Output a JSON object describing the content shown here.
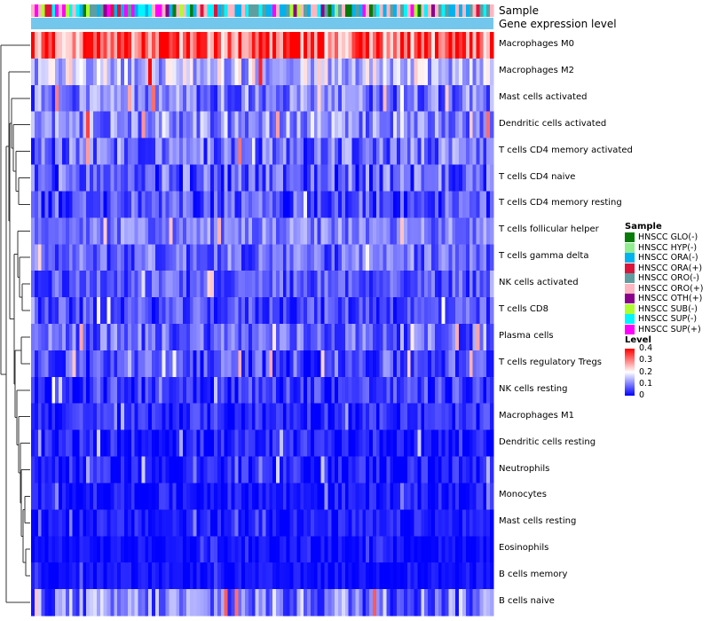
{
  "chart_data": {
    "type": "heatmap",
    "annotation_labels": {
      "sample": "Sample",
      "level": "Gene expression level"
    },
    "rows": [
      {
        "label": "Macrophages M0",
        "mean": 0.3,
        "spread": 0.12
      },
      {
        "label": "Macrophages M2",
        "mean": 0.13,
        "spread": 0.08
      },
      {
        "label": "Mast cells activated",
        "mean": 0.07,
        "spread": 0.07
      },
      {
        "label": "Dendritic cells activated",
        "mean": 0.09,
        "spread": 0.07
      },
      {
        "label": "T cells CD4 memory activated",
        "mean": 0.06,
        "spread": 0.07
      },
      {
        "label": "T cells CD4 naive",
        "mean": 0.05,
        "spread": 0.07
      },
      {
        "label": "T cells CD4 memory resting",
        "mean": 0.04,
        "spread": 0.06
      },
      {
        "label": "T cells follicular helper",
        "mean": 0.08,
        "spread": 0.05
      },
      {
        "label": "T cells gamma delta",
        "mean": 0.06,
        "spread": 0.06
      },
      {
        "label": "NK cells activated",
        "mean": 0.05,
        "spread": 0.05
      },
      {
        "label": "T cells CD8",
        "mean": 0.04,
        "spread": 0.05
      },
      {
        "label": "Plasma cells",
        "mean": 0.06,
        "spread": 0.06
      },
      {
        "label": "T cells regulatory  Tregs",
        "mean": 0.04,
        "spread": 0.06
      },
      {
        "label": "NK cells resting",
        "mean": 0.03,
        "spread": 0.05
      },
      {
        "label": "Macrophages M1",
        "mean": 0.02,
        "spread": 0.04
      },
      {
        "label": "Dendritic cells resting",
        "mean": 0.01,
        "spread": 0.04
      },
      {
        "label": "Neutrophils",
        "mean": 0.01,
        "spread": 0.04
      },
      {
        "label": "Monocytes",
        "mean": 0.01,
        "spread": 0.03
      },
      {
        "label": "Mast cells resting",
        "mean": 0.01,
        "spread": 0.03
      },
      {
        "label": "Eosinophils",
        "mean": 0.005,
        "spread": 0.02
      },
      {
        "label": "B cells memory",
        "mean": 0.005,
        "spread": 0.02
      },
      {
        "label": "B cells naive",
        "mean": 0.07,
        "spread": 0.08
      }
    ],
    "n_samples": 134,
    "value_range": [
      0,
      0.4
    ],
    "sample_legend": {
      "title": "Sample",
      "items": [
        {
          "label": "HNSCC GLO(-)",
          "color": "#087a08"
        },
        {
          "label": "HNSCC HYP(-)",
          "color": "#90ee90"
        },
        {
          "label": "HNSCC ORA(-)",
          "color": "#00b2ee"
        },
        {
          "label": "HNSCC ORA(+)",
          "color": "#dc143c"
        },
        {
          "label": "HNSCC ORO(-)",
          "color": "#5f9ea0"
        },
        {
          "label": "HNSCC ORO(+)",
          "color": "#ffb6c1"
        },
        {
          "label": "HNSCC OTH(+)",
          "color": "#8b008b"
        },
        {
          "label": "HNSCC SUB(-)",
          "color": "#adff2f"
        },
        {
          "label": "HNSCC SUP(-)",
          "color": "#00f5ff"
        },
        {
          "label": "HNSCC SUP(+)",
          "color": "#ff00ff"
        }
      ]
    },
    "level_legend": {
      "title": "Level",
      "ticks": [
        "0.4",
        "0.3",
        "0.2",
        "0.1",
        "0"
      ],
      "tick_values": [
        0.4,
        0.3,
        0.2,
        0.1,
        0
      ],
      "colors": [
        "#0000ff",
        "#ffffff",
        "#ff0000"
      ]
    },
    "level_annotation_color": "#74c7ec"
  }
}
